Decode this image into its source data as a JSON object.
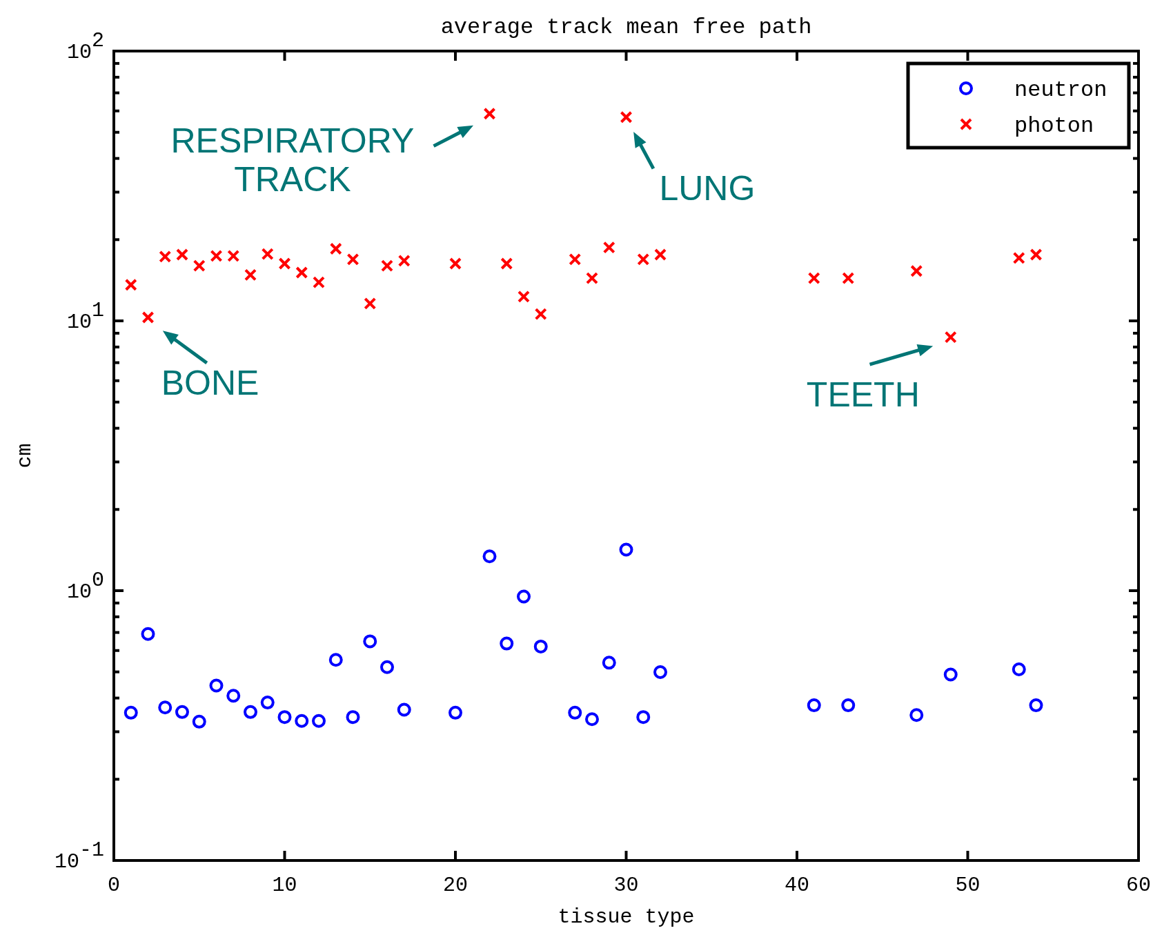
{
  "chart_data": {
    "type": "scatter",
    "title": "average track mean free path",
    "xlabel": "tissue type",
    "ylabel": "cm",
    "x": [
      1,
      2,
      3,
      4,
      5,
      6,
      7,
      8,
      9,
      10,
      11,
      12,
      13,
      14,
      15,
      16,
      17,
      20,
      22,
      23,
      24,
      25,
      27,
      28,
      29,
      30,
      31,
      32,
      41,
      43,
      47,
      49,
      53,
      54
    ],
    "series": [
      {
        "name": "neutron",
        "color": "#0000ff",
        "marker": "circle",
        "values": [
          0.353,
          0.691,
          0.369,
          0.355,
          0.327,
          0.445,
          0.408,
          0.355,
          0.385,
          0.34,
          0.329,
          0.329,
          0.554,
          0.34,
          0.649,
          0.521,
          0.362,
          0.353,
          1.34,
          0.637,
          0.951,
          0.621,
          0.353,
          0.334,
          0.541,
          1.42,
          0.34,
          0.499,
          0.376,
          0.376,
          0.346,
          0.489,
          0.511,
          0.376
        ]
      },
      {
        "name": "photon",
        "color": "#ff0000",
        "marker": "cross",
        "values": [
          13.6,
          10.3,
          17.3,
          17.6,
          16.0,
          17.4,
          17.4,
          14.8,
          17.7,
          16.3,
          15.1,
          13.9,
          18.5,
          16.9,
          11.6,
          16.0,
          16.7,
          16.3,
          58.6,
          16.3,
          12.3,
          10.6,
          16.9,
          14.4,
          18.7,
          56.9,
          16.9,
          17.6,
          14.4,
          14.4,
          15.3,
          8.7,
          17.1,
          17.6
        ]
      }
    ],
    "log": "y",
    "xlim": [
      0,
      60
    ],
    "xticks": [
      0,
      10,
      20,
      30,
      40,
      50,
      60
    ],
    "ylim": [
      0.1,
      100
    ],
    "yticks": [
      {
        "value": 0.1,
        "label": "10$^{-1}$"
      },
      {
        "value": 0.2,
        "label": null
      },
      {
        "value": 0.3,
        "label": null
      },
      {
        "value": 0.4,
        "label": null
      },
      {
        "value": 0.5,
        "label": null
      },
      {
        "value": 0.6,
        "label": null
      },
      {
        "value": 0.7,
        "label": null
      },
      {
        "value": 0.8,
        "label": null
      },
      {
        "value": 0.9,
        "label": null
      },
      {
        "value": 1,
        "label": "10$^{0}$"
      },
      {
        "value": 2,
        "label": null
      },
      {
        "value": 3,
        "label": null
      },
      {
        "value": 4,
        "label": null
      },
      {
        "value": 5,
        "label": null
      },
      {
        "value": 6,
        "label": null
      },
      {
        "value": 7,
        "label": null
      },
      {
        "value": 8,
        "label": null
      },
      {
        "value": 9,
        "label": null
      },
      {
        "value": 10,
        "label": "10$^{1}$"
      },
      {
        "value": 20,
        "label": null
      },
      {
        "value": 30,
        "label": null
      },
      {
        "value": 40,
        "label": null
      },
      {
        "value": 50,
        "label": null
      },
      {
        "value": 60,
        "label": null
      },
      {
        "value": 70,
        "label": null
      },
      {
        "value": 80,
        "label": null
      },
      {
        "value": 90,
        "label": null
      },
      {
        "value": 100,
        "label": "10$^{2}$"
      }
    ],
    "grid": false,
    "legend": "top right",
    "annotations": [
      {
        "text": "BONE",
        "x": 2,
        "y": 10.3
      },
      {
        "text": "RESPIRATORY\nTRACK",
        "x": 22,
        "y": 58.6
      },
      {
        "text": "LUNG",
        "x": 30,
        "y": 56.9
      },
      {
        "text": "TEETH",
        "x": 49,
        "y": 8.7
      }
    ]
  }
}
